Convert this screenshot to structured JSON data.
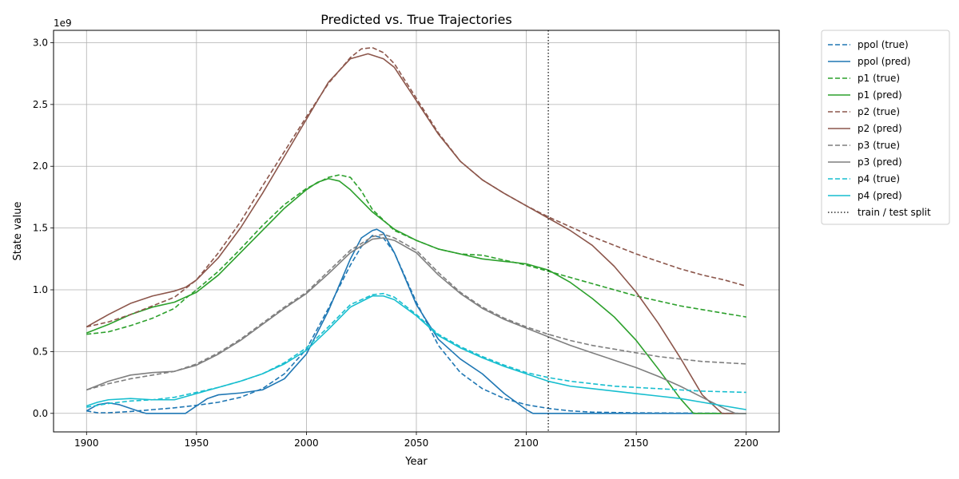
{
  "chart_data": {
    "type": "line",
    "title": "Predicted vs. True Trajectories",
    "xlabel": "Year",
    "ylabel": "State value",
    "y_scale_label": "1e9",
    "xlim": [
      1885,
      2215
    ],
    "ylim": [
      -0.15,
      3.1
    ],
    "xticks": [
      1900,
      1950,
      2000,
      2050,
      2100,
      2150,
      2200
    ],
    "xtick_labels": [
      "1900",
      "1950",
      "2000",
      "2050",
      "2100",
      "2150",
      "2200"
    ],
    "yticks": [
      0.0,
      0.5,
      1.0,
      1.5,
      2.0,
      2.5,
      3.0
    ],
    "ytick_labels": [
      "0.0",
      "0.5",
      "1.0",
      "1.5",
      "2.0",
      "2.5",
      "3.0"
    ],
    "grid": true,
    "legend_position": "outside-right-top",
    "split": {
      "name": "train / test split",
      "x": 2110,
      "color": "#000000",
      "style": "dotted"
    },
    "series": [
      {
        "name": "ppol (true)",
        "color": "#1f77b4",
        "style": "dashed",
        "x": [
          1900,
          1905,
          1910,
          1920,
          1930,
          1940,
          1950,
          1960,
          1970,
          1980,
          1990,
          2000,
          2010,
          2020,
          2025,
          2030,
          2035,
          2040,
          2050,
          2060,
          2070,
          2080,
          2090,
          2100,
          2110,
          2120,
          2130,
          2140,
          2150,
          2175,
          2200
        ],
        "y": [
          0.02,
          0.005,
          0.005,
          0.015,
          0.03,
          0.045,
          0.065,
          0.09,
          0.13,
          0.2,
          0.32,
          0.52,
          0.85,
          1.2,
          1.35,
          1.44,
          1.42,
          1.3,
          0.9,
          0.55,
          0.33,
          0.2,
          0.12,
          0.07,
          0.04,
          0.02,
          0.01,
          0.007,
          0.004,
          0.002,
          0.0
        ]
      },
      {
        "name": "ppol (pred)",
        "color": "#1f77b4",
        "style": "solid",
        "x": [
          1900,
          1905,
          1910,
          1915,
          1920,
          1925,
          1927,
          1935,
          1945,
          1950,
          1955,
          1960,
          1970,
          1980,
          1990,
          2000,
          2010,
          2020,
          2025,
          2030,
          2032,
          2035,
          2040,
          2050,
          2060,
          2070,
          2080,
          2090,
          2100,
          2103,
          2120,
          2150,
          2200
        ],
        "y": [
          0.02,
          0.07,
          0.085,
          0.07,
          0.04,
          0.01,
          0.0,
          0.0,
          0.0,
          0.06,
          0.12,
          0.15,
          0.165,
          0.19,
          0.28,
          0.48,
          0.83,
          1.25,
          1.42,
          1.48,
          1.49,
          1.46,
          1.3,
          0.88,
          0.6,
          0.44,
          0.32,
          0.16,
          0.03,
          0.0,
          0.0,
          0.0,
          0.0
        ]
      },
      {
        "name": "p1 (true)",
        "color": "#2ca02c",
        "style": "dashed",
        "x": [
          1900,
          1910,
          1920,
          1930,
          1940,
          1945,
          1950,
          1960,
          1970,
          1980,
          1990,
          2000,
          2010,
          2015,
          2020,
          2025,
          2030,
          2040,
          2050,
          2060,
          2070,
          2080,
          2090,
          2100,
          2110,
          2120,
          2130,
          2140,
          2150,
          2160,
          2170,
          2180,
          2190,
          2200
        ],
        "y": [
          0.64,
          0.66,
          0.71,
          0.77,
          0.85,
          0.93,
          1.0,
          1.15,
          1.33,
          1.52,
          1.69,
          1.82,
          1.91,
          1.93,
          1.91,
          1.8,
          1.65,
          1.48,
          1.4,
          1.33,
          1.29,
          1.28,
          1.24,
          1.2,
          1.15,
          1.1,
          1.05,
          1.0,
          0.95,
          0.91,
          0.87,
          0.84,
          0.81,
          0.78
        ]
      },
      {
        "name": "p1 (pred)",
        "color": "#2ca02c",
        "style": "solid",
        "x": [
          1900,
          1910,
          1920,
          1930,
          1940,
          1950,
          1960,
          1970,
          1980,
          1990,
          2000,
          2005,
          2010,
          2015,
          2020,
          2030,
          2040,
          2050,
          2060,
          2070,
          2080,
          2090,
          2100,
          2110,
          2120,
          2130,
          2140,
          2150,
          2160,
          2170,
          2176,
          2190,
          2200
        ],
        "y": [
          0.65,
          0.72,
          0.8,
          0.86,
          0.9,
          0.98,
          1.12,
          1.3,
          1.48,
          1.66,
          1.81,
          1.87,
          1.9,
          1.88,
          1.81,
          1.63,
          1.49,
          1.4,
          1.33,
          1.29,
          1.25,
          1.23,
          1.21,
          1.16,
          1.06,
          0.93,
          0.78,
          0.59,
          0.36,
          0.12,
          0.0,
          0.0,
          0.0
        ]
      },
      {
        "name": "p2 (true)",
        "color": "#8c564b",
        "style": "dashed",
        "x": [
          1900,
          1910,
          1920,
          1930,
          1940,
          1950,
          1960,
          1970,
          1980,
          1990,
          2000,
          2010,
          2020,
          2025,
          2030,
          2035,
          2040,
          2050,
          2060,
          2070,
          2080,
          2090,
          2100,
          2110,
          2120,
          2130,
          2140,
          2150,
          2160,
          2170,
          2180,
          2190,
          2200
        ],
        "y": [
          0.7,
          0.74,
          0.8,
          0.87,
          0.94,
          1.08,
          1.3,
          1.55,
          1.84,
          2.12,
          2.4,
          2.67,
          2.88,
          2.95,
          2.96,
          2.92,
          2.83,
          2.55,
          2.27,
          2.04,
          1.89,
          1.78,
          1.68,
          1.59,
          1.51,
          1.43,
          1.36,
          1.29,
          1.23,
          1.17,
          1.12,
          1.08,
          1.03
        ]
      },
      {
        "name": "p2 (pred)",
        "color": "#8c564b",
        "style": "solid",
        "x": [
          1900,
          1910,
          1920,
          1930,
          1940,
          1945,
          1950,
          1960,
          1970,
          1980,
          1990,
          2000,
          2010,
          2020,
          2028,
          2035,
          2040,
          2050,
          2060,
          2070,
          2080,
          2090,
          2100,
          2110,
          2120,
          2130,
          2140,
          2150,
          2160,
          2170,
          2180,
          2189,
          2200
        ],
        "y": [
          0.7,
          0.8,
          0.89,
          0.95,
          0.99,
          1.02,
          1.08,
          1.26,
          1.5,
          1.78,
          2.08,
          2.38,
          2.68,
          2.87,
          2.91,
          2.87,
          2.8,
          2.53,
          2.26,
          2.04,
          1.89,
          1.78,
          1.68,
          1.58,
          1.48,
          1.36,
          1.19,
          0.98,
          0.73,
          0.45,
          0.15,
          0.0,
          0.0
        ]
      },
      {
        "name": "p3 (true)",
        "color": "#7f7f7f",
        "style": "dashed",
        "x": [
          1900,
          1910,
          1920,
          1930,
          1940,
          1950,
          1960,
          1970,
          1980,
          1990,
          2000,
          2010,
          2020,
          2030,
          2035,
          2040,
          2050,
          2060,
          2070,
          2080,
          2090,
          2100,
          2110,
          2120,
          2130,
          2140,
          2150,
          2160,
          2170,
          2180,
          2190,
          2200
        ],
        "y": [
          0.19,
          0.24,
          0.28,
          0.31,
          0.34,
          0.4,
          0.49,
          0.6,
          0.73,
          0.86,
          0.98,
          1.15,
          1.32,
          1.43,
          1.45,
          1.42,
          1.32,
          1.14,
          0.98,
          0.86,
          0.77,
          0.7,
          0.64,
          0.59,
          0.55,
          0.52,
          0.49,
          0.46,
          0.44,
          0.42,
          0.41,
          0.4
        ]
      },
      {
        "name": "p3 (pred)",
        "color": "#7f7f7f",
        "style": "solid",
        "x": [
          1900,
          1910,
          1920,
          1930,
          1940,
          1950,
          1960,
          1970,
          1980,
          1990,
          2000,
          2010,
          2020,
          2030,
          2035,
          2040,
          2050,
          2060,
          2070,
          2080,
          2090,
          2100,
          2110,
          2120,
          2130,
          2140,
          2150,
          2160,
          2170,
          2180,
          2190,
          2195,
          2200
        ],
        "y": [
          0.19,
          0.26,
          0.31,
          0.33,
          0.34,
          0.39,
          0.48,
          0.59,
          0.72,
          0.85,
          0.97,
          1.13,
          1.3,
          1.41,
          1.42,
          1.4,
          1.3,
          1.12,
          0.97,
          0.85,
          0.76,
          0.69,
          0.62,
          0.55,
          0.49,
          0.43,
          0.37,
          0.3,
          0.22,
          0.13,
          0.04,
          0.0,
          0.0
        ]
      },
      {
        "name": "p4 (true)",
        "color": "#17becf",
        "style": "dashed",
        "x": [
          1900,
          1910,
          1920,
          1930,
          1940,
          1950,
          1960,
          1970,
          1980,
          1990,
          2000,
          2010,
          2020,
          2030,
          2035,
          2040,
          2050,
          2060,
          2070,
          2080,
          2090,
          2100,
          2110,
          2120,
          2130,
          2140,
          2150,
          2160,
          2170,
          2180,
          2190,
          2200
        ],
        "y": [
          0.05,
          0.08,
          0.1,
          0.11,
          0.13,
          0.17,
          0.21,
          0.26,
          0.32,
          0.41,
          0.53,
          0.7,
          0.88,
          0.96,
          0.97,
          0.94,
          0.8,
          0.64,
          0.54,
          0.46,
          0.39,
          0.33,
          0.29,
          0.26,
          0.24,
          0.22,
          0.21,
          0.2,
          0.19,
          0.18,
          0.175,
          0.17
        ]
      },
      {
        "name": "p4 (pred)",
        "color": "#17becf",
        "style": "solid",
        "x": [
          1900,
          1905,
          1910,
          1920,
          1930,
          1940,
          1950,
          1960,
          1970,
          1980,
          1990,
          2000,
          2010,
          2020,
          2030,
          2035,
          2040,
          2050,
          2060,
          2070,
          2080,
          2090,
          2100,
          2110,
          2120,
          2130,
          2140,
          2150,
          2160,
          2170,
          2180,
          2190,
          2200
        ],
        "y": [
          0.06,
          0.09,
          0.11,
          0.12,
          0.11,
          0.11,
          0.16,
          0.21,
          0.26,
          0.32,
          0.4,
          0.51,
          0.68,
          0.86,
          0.95,
          0.95,
          0.92,
          0.79,
          0.63,
          0.53,
          0.45,
          0.38,
          0.32,
          0.26,
          0.22,
          0.2,
          0.18,
          0.16,
          0.14,
          0.12,
          0.09,
          0.06,
          0.03
        ]
      }
    ]
  }
}
